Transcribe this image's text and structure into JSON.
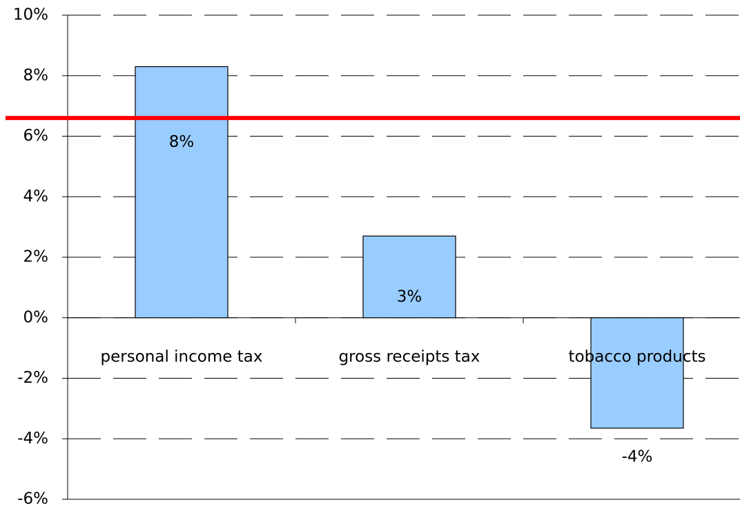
{
  "chart_data": {
    "type": "bar",
    "categories": [
      "personal income tax",
      "gross receipts tax",
      "tobacco products"
    ],
    "values": [
      8.3,
      2.7,
      -3.65
    ],
    "value_labels": [
      "8%",
      "3%",
      "-4%"
    ],
    "color": "#99ccff",
    "ylim": [
      -6,
      10
    ],
    "yticks": [
      {
        "value": -6,
        "label": "-6%"
      },
      {
        "value": -4,
        "label": "-4%"
      },
      {
        "value": -2,
        "label": "-2%"
      },
      {
        "value": 0,
        "label": "0%"
      },
      {
        "value": 2,
        "label": "2%"
      },
      {
        "value": 4,
        "label": "4%"
      },
      {
        "value": 6,
        "label": "6%"
      },
      {
        "value": 8,
        "label": "8%"
      },
      {
        "value": 10,
        "label": "10%"
      }
    ],
    "grid": true,
    "reference_line": {
      "value": 6.6,
      "color": "#ff0000"
    }
  }
}
